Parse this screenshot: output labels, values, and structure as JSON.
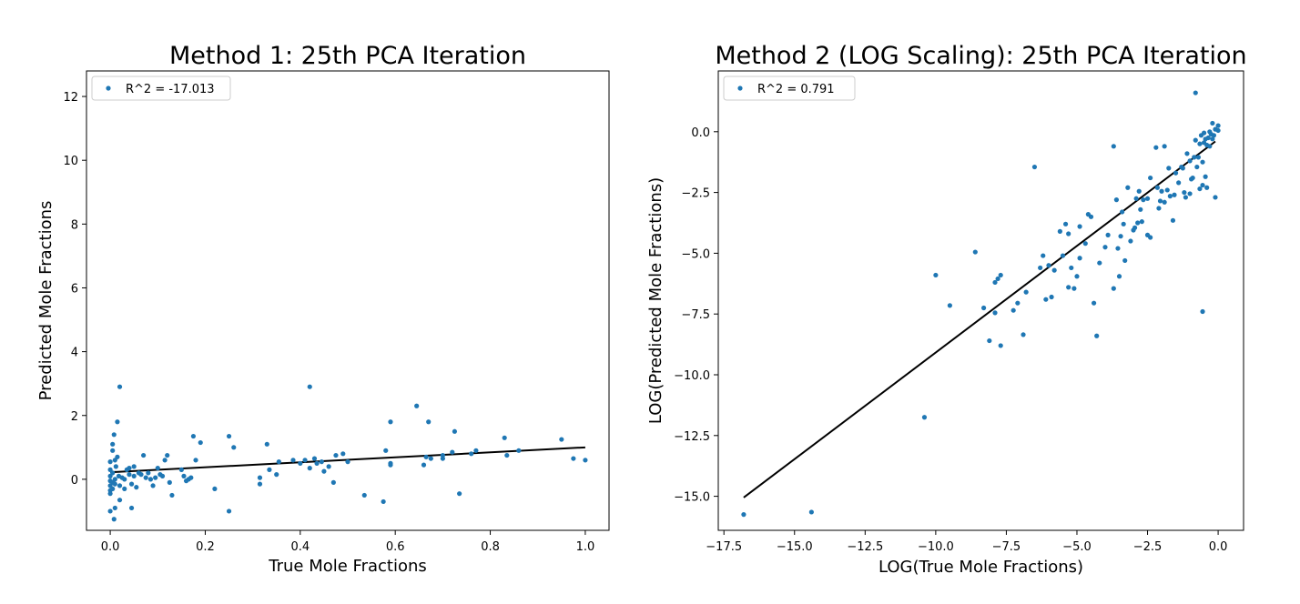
{
  "chart_data": [
    {
      "type": "scatter",
      "title": "Method 1: 25th PCA Iteration",
      "xlabel": "True Mole Fractions",
      "ylabel": "Predicted Mole Fractions",
      "xlim": [
        -0.05,
        1.05
      ],
      "ylim": [
        -1.6,
        12.8
      ],
      "xticks": [
        0.0,
        0.2,
        0.4,
        0.6,
        0.8,
        1.0
      ],
      "xtick_labels": [
        "0.0",
        "0.2",
        "0.4",
        "0.6",
        "0.8",
        "1.0"
      ],
      "yticks": [
        0,
        2,
        4,
        6,
        8,
        10,
        12
      ],
      "ytick_labels": [
        "0",
        "2",
        "4",
        "6",
        "8",
        "10",
        "12"
      ],
      "legend": {
        "label": "R^2 = -17.013",
        "placement": "upper-left"
      },
      "point_color": "#1f77b4",
      "line_color": "#000000",
      "fit_line": {
        "x": [
          0.0,
          1.0
        ],
        "y": [
          0.22,
          1.0
        ]
      },
      "series": [
        {
          "points": [
            [
              0.0,
              0.55
            ],
            [
              0.0,
              0.3
            ],
            [
              0.0,
              0.1
            ],
            [
              0.0,
              -0.05
            ],
            [
              0.0,
              -0.2
            ],
            [
              0.0,
              -0.35
            ],
            [
              0.0,
              -0.45
            ],
            [
              0.0,
              -1.0
            ],
            [
              0.005,
              0.9
            ],
            [
              0.005,
              1.1
            ],
            [
              0.005,
              0.2
            ],
            [
              0.005,
              -0.1
            ],
            [
              0.005,
              -0.3
            ],
            [
              0.008,
              1.4
            ],
            [
              0.008,
              -1.25
            ],
            [
              0.01,
              0.6
            ],
            [
              0.01,
              0.0
            ],
            [
              0.01,
              -0.15
            ],
            [
              0.01,
              -0.9
            ],
            [
              0.012,
              0.4
            ],
            [
              0.015,
              1.8
            ],
            [
              0.015,
              0.7
            ],
            [
              0.018,
              0.1
            ],
            [
              0.02,
              2.9
            ],
            [
              0.02,
              -0.2
            ],
            [
              0.02,
              -0.65
            ],
            [
              0.025,
              0.05
            ],
            [
              0.03,
              -0.3
            ],
            [
              0.03,
              0.0
            ],
            [
              0.035,
              0.3
            ],
            [
              0.04,
              0.35
            ],
            [
              0.04,
              0.15
            ],
            [
              0.045,
              -0.9
            ],
            [
              0.045,
              -0.15
            ],
            [
              0.05,
              0.4
            ],
            [
              0.05,
              0.1
            ],
            [
              0.055,
              -0.25
            ],
            [
              0.06,
              0.2
            ],
            [
              0.065,
              0.15
            ],
            [
              0.07,
              0.75
            ],
            [
              0.075,
              0.05
            ],
            [
              0.08,
              0.2
            ],
            [
              0.085,
              0.0
            ],
            [
              0.09,
              -0.2
            ],
            [
              0.095,
              0.05
            ],
            [
              0.1,
              0.35
            ],
            [
              0.105,
              0.15
            ],
            [
              0.11,
              0.1
            ],
            [
              0.115,
              0.6
            ],
            [
              0.12,
              0.75
            ],
            [
              0.125,
              -0.1
            ],
            [
              0.13,
              -0.5
            ],
            [
              0.15,
              0.3
            ],
            [
              0.155,
              0.1
            ],
            [
              0.16,
              -0.05
            ],
            [
              0.165,
              0.0
            ],
            [
              0.17,
              0.05
            ],
            [
              0.175,
              1.35
            ],
            [
              0.18,
              0.6
            ],
            [
              0.19,
              1.15
            ],
            [
              0.22,
              -0.3
            ],
            [
              0.25,
              1.35
            ],
            [
              0.25,
              -1.0
            ],
            [
              0.26,
              1.0
            ],
            [
              0.315,
              0.05
            ],
            [
              0.315,
              -0.15
            ],
            [
              0.33,
              1.1
            ],
            [
              0.335,
              0.3
            ],
            [
              0.35,
              0.15
            ],
            [
              0.355,
              0.55
            ],
            [
              0.385,
              0.6
            ],
            [
              0.4,
              0.5
            ],
            [
              0.41,
              0.6
            ],
            [
              0.42,
              2.9
            ],
            [
              0.42,
              0.35
            ],
            [
              0.43,
              0.65
            ],
            [
              0.435,
              0.5
            ],
            [
              0.445,
              0.55
            ],
            [
              0.45,
              0.25
            ],
            [
              0.46,
              0.4
            ],
            [
              0.47,
              -0.1
            ],
            [
              0.475,
              0.75
            ],
            [
              0.49,
              0.8
            ],
            [
              0.5,
              0.55
            ],
            [
              0.535,
              -0.5
            ],
            [
              0.575,
              -0.7
            ],
            [
              0.58,
              0.9
            ],
            [
              0.59,
              1.8
            ],
            [
              0.59,
              0.5
            ],
            [
              0.59,
              0.45
            ],
            [
              0.645,
              2.3
            ],
            [
              0.66,
              0.45
            ],
            [
              0.665,
              0.7
            ],
            [
              0.67,
              1.8
            ],
            [
              0.675,
              0.65
            ],
            [
              0.7,
              0.75
            ],
            [
              0.7,
              0.65
            ],
            [
              0.72,
              0.85
            ],
            [
              0.725,
              1.5
            ],
            [
              0.735,
              -0.45
            ],
            [
              0.76,
              0.8
            ],
            [
              0.77,
              0.9
            ],
            [
              0.83,
              1.3
            ],
            [
              0.835,
              0.75
            ],
            [
              0.86,
              0.9
            ],
            [
              0.95,
              1.25
            ],
            [
              0.975,
              0.65
            ],
            [
              1.0,
              0.6
            ]
          ]
        }
      ]
    },
    {
      "type": "scatter",
      "title": "Method 2 (LOG Scaling): 25th PCA Iteration",
      "xlabel": "LOG(True Mole Fractions)",
      "ylabel": "LOG(Predicted Mole Fractions)",
      "xlim": [
        -17.7,
        0.9
      ],
      "ylim": [
        -16.4,
        2.5
      ],
      "xticks": [
        -17.5,
        -15.0,
        -12.5,
        -10.0,
        -7.5,
        -5.0,
        -2.5,
        0.0
      ],
      "xtick_labels": [
        "−17.5",
        "−15.0",
        "−12.5",
        "−10.0",
        "−7.5",
        "−5.0",
        "−2.5",
        "0.0"
      ],
      "yticks": [
        -15.0,
        -12.5,
        -10.0,
        -7.5,
        -5.0,
        -2.5,
        0.0
      ],
      "ytick_labels": [
        "−15.0",
        "−12.5",
        "−10.0",
        "−7.5",
        "−5.0",
        "−2.5",
        "0.0"
      ],
      "legend": {
        "label": "R^2 = 0.791",
        "placement": "upper-left"
      },
      "point_color": "#1f77b4",
      "line_color": "#000000",
      "fit_line": {
        "x": [
          -16.8,
          -0.1
        ],
        "y": [
          -15.05,
          -0.4
        ]
      },
      "series": [
        {
          "points": [
            [
              -16.8,
              -15.75
            ],
            [
              -14.4,
              -15.65
            ],
            [
              -10.4,
              -11.75
            ],
            [
              -10.0,
              -5.9
            ],
            [
              -9.5,
              -7.15
            ],
            [
              -8.6,
              -4.95
            ],
            [
              -8.3,
              -7.25
            ],
            [
              -8.1,
              -8.6
            ],
            [
              -7.9,
              -6.2
            ],
            [
              -7.8,
              -6.05
            ],
            [
              -7.7,
              -5.9
            ],
            [
              -7.7,
              -8.8
            ],
            [
              -7.9,
              -7.45
            ],
            [
              -7.25,
              -7.35
            ],
            [
              -7.1,
              -7.05
            ],
            [
              -6.9,
              -8.35
            ],
            [
              -6.8,
              -6.6
            ],
            [
              -6.5,
              -1.45
            ],
            [
              -6.3,
              -5.6
            ],
            [
              -6.2,
              -5.1
            ],
            [
              -6.1,
              -6.9
            ],
            [
              -6.0,
              -5.5
            ],
            [
              -5.9,
              -6.8
            ],
            [
              -5.8,
              -5.7
            ],
            [
              -5.6,
              -4.1
            ],
            [
              -5.5,
              -5.1
            ],
            [
              -5.4,
              -3.8
            ],
            [
              -5.3,
              -4.2
            ],
            [
              -5.3,
              -6.4
            ],
            [
              -5.2,
              -5.6
            ],
            [
              -5.1,
              -6.45
            ],
            [
              -5.0,
              -5.95
            ],
            [
              -4.9,
              -3.9
            ],
            [
              -4.9,
              -5.2
            ],
            [
              -4.7,
              -4.6
            ],
            [
              -4.6,
              -3.4
            ],
            [
              -4.5,
              -3.5
            ],
            [
              -4.4,
              -7.05
            ],
            [
              -4.3,
              -8.4
            ],
            [
              -4.2,
              -5.4
            ],
            [
              -4.0,
              -4.75
            ],
            [
              -3.9,
              -4.25
            ],
            [
              -3.7,
              -6.45
            ],
            [
              -3.7,
              -0.6
            ],
            [
              -3.6,
              -2.8
            ],
            [
              -3.55,
              -4.8
            ],
            [
              -3.5,
              -5.95
            ],
            [
              -3.45,
              -4.3
            ],
            [
              -3.4,
              -3.3
            ],
            [
              -3.35,
              -3.8
            ],
            [
              -3.3,
              -5.3
            ],
            [
              -3.2,
              -2.3
            ],
            [
              -3.1,
              -4.5
            ],
            [
              -3.0,
              -4.05
            ],
            [
              -2.95,
              -3.95
            ],
            [
              -2.9,
              -2.75
            ],
            [
              -2.85,
              -3.75
            ],
            [
              -2.8,
              -2.45
            ],
            [
              -2.75,
              -3.2
            ],
            [
              -2.7,
              -3.7
            ],
            [
              -2.65,
              -2.8
            ],
            [
              -2.5,
              -2.75
            ],
            [
              -2.5,
              -4.25
            ],
            [
              -2.4,
              -4.35
            ],
            [
              -2.4,
              -1.9
            ],
            [
              -2.2,
              -0.65
            ],
            [
              -2.15,
              -2.3
            ],
            [
              -2.1,
              -3.15
            ],
            [
              -2.05,
              -2.85
            ],
            [
              -2.0,
              -2.45
            ],
            [
              -1.9,
              -0.6
            ],
            [
              -1.9,
              -2.9
            ],
            [
              -1.8,
              -2.4
            ],
            [
              -1.75,
              -1.5
            ],
            [
              -1.7,
              -2.65
            ],
            [
              -1.6,
              -3.65
            ],
            [
              -1.55,
              -2.6
            ],
            [
              -1.5,
              -1.7
            ],
            [
              -1.4,
              -2.1
            ],
            [
              -1.3,
              -1.45
            ],
            [
              -1.25,
              -1.5
            ],
            [
              -1.2,
              -2.5
            ],
            [
              -1.15,
              -2.7
            ],
            [
              -1.1,
              -0.9
            ],
            [
              -1.0,
              -2.55
            ],
            [
              -1.0,
              -1.2
            ],
            [
              -0.95,
              -1.95
            ],
            [
              -0.9,
              -1.9
            ],
            [
              -0.85,
              -1.05
            ],
            [
              -0.8,
              -0.35
            ],
            [
              -0.8,
              1.6
            ],
            [
              -0.75,
              -1.45
            ],
            [
              -0.7,
              -1.05
            ],
            [
              -0.65,
              -0.5
            ],
            [
              -0.65,
              -2.35
            ],
            [
              -0.6,
              -0.15
            ],
            [
              -0.55,
              -2.2
            ],
            [
              -0.55,
              -1.25
            ],
            [
              -0.55,
              -7.4
            ],
            [
              -0.5,
              -0.45
            ],
            [
              -0.5,
              -0.05
            ],
            [
              -0.45,
              -1.85
            ],
            [
              -0.45,
              -0.3
            ],
            [
              -0.4,
              -2.3
            ],
            [
              -0.4,
              -0.55
            ],
            [
              -0.35,
              -0.25
            ],
            [
              -0.3,
              0.0
            ],
            [
              -0.3,
              -0.6
            ],
            [
              -0.25,
              -0.1
            ],
            [
              -0.2,
              0.35
            ],
            [
              -0.2,
              -0.3
            ],
            [
              -0.15,
              -0.15
            ],
            [
              -0.1,
              0.1
            ],
            [
              -0.1,
              -2.7
            ],
            [
              0.0,
              0.25
            ],
            [
              0.0,
              0.05
            ]
          ]
        }
      ]
    }
  ]
}
